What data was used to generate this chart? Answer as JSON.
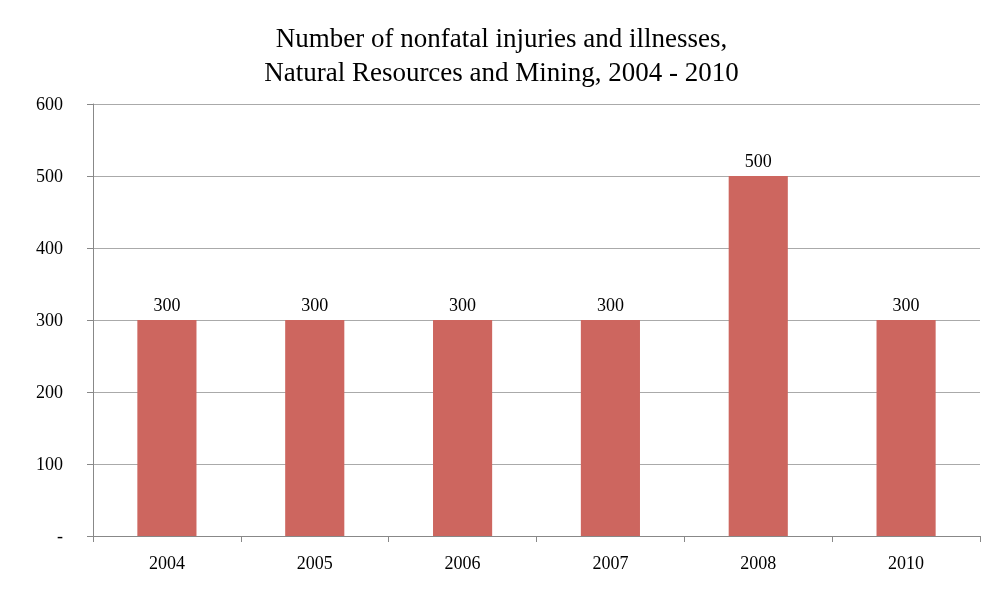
{
  "chart_data": {
    "type": "bar",
    "title": "Number of nonfatal injuries and illnesses,\nNatural Resources and Mining, 2004 - 2010",
    "categories": [
      "2004",
      "2005",
      "2006",
      "2007",
      "2008",
      "2010"
    ],
    "values": [
      300,
      300,
      300,
      300,
      500,
      300
    ],
    "color": "#cd665f",
    "ylim": [
      0,
      600
    ],
    "yticks": [
      {
        "value": 0,
        "label": "-"
      },
      100,
      200,
      300,
      400,
      500,
      600
    ],
    "grid": "y",
    "data_labels": true
  }
}
